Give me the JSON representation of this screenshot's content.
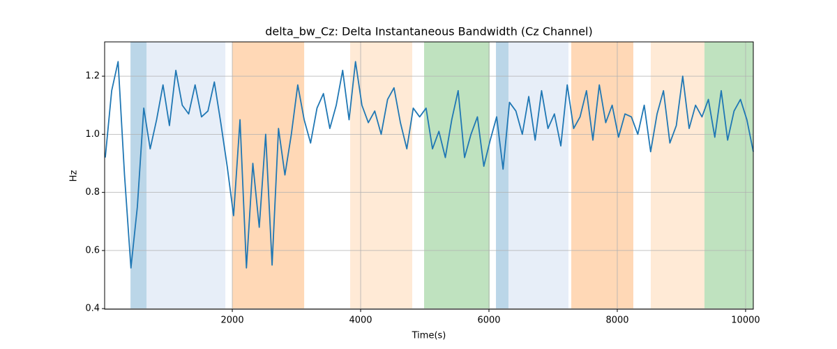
{
  "chart_data": {
    "type": "line",
    "title": "delta_bw_Cz: Delta Instantaneous Bandwidth (Cz Channel)",
    "xlabel": "Time(s)",
    "ylabel": "Hz",
    "x": [
      20,
      120,
      220,
      320,
      420,
      520,
      620,
      720,
      820,
      920,
      1020,
      1120,
      1220,
      1320,
      1420,
      1520,
      1620,
      1720,
      1820,
      1920,
      2020,
      2120,
      2220,
      2320,
      2420,
      2520,
      2620,
      2720,
      2820,
      2920,
      3020,
      3120,
      3220,
      3320,
      3420,
      3520,
      3620,
      3720,
      3820,
      3920,
      4020,
      4120,
      4220,
      4320,
      4420,
      4520,
      4620,
      4720,
      4820,
      4920,
      5020,
      5120,
      5220,
      5320,
      5420,
      5520,
      5620,
      5720,
      5820,
      5920,
      6020,
      6120,
      6220,
      6320,
      6420,
      6520,
      6620,
      6720,
      6820,
      6920,
      7020,
      7120,
      7220,
      7320,
      7420,
      7520,
      7620,
      7720,
      7820,
      7920,
      8020,
      8120,
      8220,
      8320,
      8420,
      8520,
      8620,
      8720,
      8820,
      8920,
      9020,
      9120,
      9220,
      9320,
      9420,
      9520,
      9620,
      9720,
      9820,
      9920,
      10020,
      10120
    ],
    "series": [
      {
        "name": "delta_bw_Cz",
        "color": "#1f77b4",
        "values": [
          0.92,
          1.15,
          1.25,
          0.86,
          0.54,
          0.75,
          1.09,
          0.95,
          1.05,
          1.17,
          1.03,
          1.22,
          1.1,
          1.07,
          1.17,
          1.06,
          1.08,
          1.18,
          1.04,
          0.89,
          0.72,
          1.05,
          0.54,
          0.9,
          0.68,
          1.0,
          0.55,
          1.02,
          0.86,
          1.0,
          1.17,
          1.05,
          0.97,
          1.09,
          1.14,
          1.02,
          1.1,
          1.22,
          1.05,
          1.25,
          1.1,
          1.04,
          1.08,
          1.0,
          1.12,
          1.16,
          1.04,
          0.95,
          1.09,
          1.06,
          1.09,
          0.95,
          1.01,
          0.92,
          1.05,
          1.15,
          0.92,
          1.0,
          1.06,
          0.89,
          0.98,
          1.06,
          0.88,
          1.11,
          1.08,
          1.0,
          1.13,
          0.98,
          1.15,
          1.02,
          1.07,
          0.96,
          1.17,
          1.02,
          1.06,
          1.15,
          0.98,
          1.17,
          1.04,
          1.1,
          0.99,
          1.07,
          1.06,
          1.0,
          1.1,
          0.94,
          1.07,
          1.15,
          0.97,
          1.03,
          1.2,
          1.02,
          1.1,
          1.06,
          1.12,
          0.99,
          1.15,
          0.98,
          1.08,
          1.12,
          1.05,
          0.94
        ]
      }
    ],
    "spans": [
      {
        "start": 413,
        "end": 663,
        "color": "#1f77b4",
        "alpha": 0.3
      },
      {
        "start": 663,
        "end": 1891,
        "color": "#aec7e8",
        "alpha": 0.3
      },
      {
        "start": 2000,
        "end": 3120,
        "color": "#ff7f0e",
        "alpha": 0.3
      },
      {
        "start": 3837,
        "end": 4804,
        "color": "#ffbb78",
        "alpha": 0.3
      },
      {
        "start": 4989,
        "end": 6011,
        "color": "#2ca02c",
        "alpha": 0.3
      },
      {
        "start": 6109,
        "end": 6304,
        "color": "#1f77b4",
        "alpha": 0.3
      },
      {
        "start": 6304,
        "end": 7239,
        "color": "#aec7e8",
        "alpha": 0.3
      },
      {
        "start": 7283,
        "end": 8250,
        "color": "#ff7f0e",
        "alpha": 0.3
      },
      {
        "start": 8522,
        "end": 9359,
        "color": "#ffbb78",
        "alpha": 0.3
      },
      {
        "start": 9359,
        "end": 10120,
        "color": "#2ca02c",
        "alpha": 0.3
      }
    ],
    "xlim": [
      10,
      10120
    ],
    "ylim": [
      0.398,
      1.318
    ],
    "xticks": [
      2000,
      4000,
      6000,
      8000,
      10000
    ],
    "yticks": [
      0.4,
      0.6,
      0.8,
      {
        "value": 1,
        "label": "1.0"
      },
      1.2
    ],
    "grid": true
  }
}
